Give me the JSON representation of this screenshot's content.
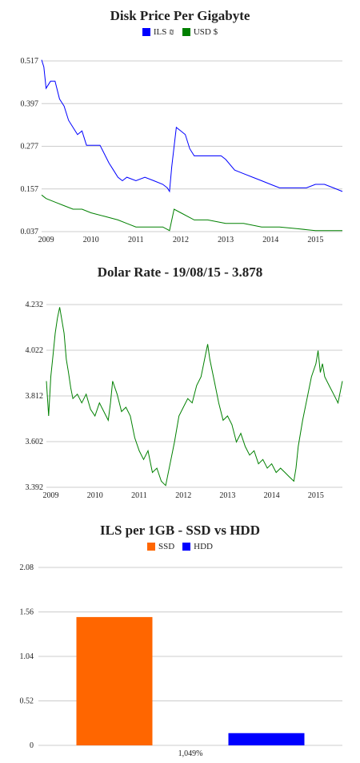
{
  "colors": {
    "ils": "#0000ff",
    "usd": "#008000",
    "ssd": "#ff6600",
    "hdd": "#0000ff",
    "grid": "#cccccc"
  },
  "chart_data": [
    {
      "type": "line",
      "title": "Disk Price Per Gigabyte",
      "legend_position": "top-center",
      "grid": true,
      "yticks": [
        "0.517",
        "0.397",
        "0.277",
        "0.157",
        "0.037"
      ],
      "ylim": [
        0.037,
        0.517
      ],
      "xlim": [
        2008.9,
        2015.6
      ],
      "xticks": [
        "2009",
        "2010",
        "2011",
        "2012",
        "2013",
        "2014",
        "2015"
      ],
      "series": [
        {
          "name": "ILS ₪",
          "color": "#0000ff",
          "x": [
            2008.9,
            2008.95,
            2009.0,
            2009.05,
            2009.1,
            2009.2,
            2009.3,
            2009.4,
            2009.5,
            2009.6,
            2009.7,
            2009.8,
            2009.9,
            2010.0,
            2010.2,
            2010.4,
            2010.5,
            2010.6,
            2010.7,
            2010.8,
            2011.0,
            2011.2,
            2011.4,
            2011.6,
            2011.7,
            2011.75,
            2011.8,
            2011.9,
            2012.0,
            2012.1,
            2012.2,
            2012.3,
            2012.5,
            2012.7,
            2012.9,
            2013.0,
            2013.2,
            2013.4,
            2013.6,
            2013.8,
            2014.0,
            2014.2,
            2014.4,
            2014.6,
            2014.8,
            2015.0,
            2015.2,
            2015.4,
            2015.6
          ],
          "values": [
            0.52,
            0.5,
            0.44,
            0.45,
            0.46,
            0.46,
            0.41,
            0.39,
            0.35,
            0.33,
            0.31,
            0.32,
            0.28,
            0.28,
            0.28,
            0.23,
            0.21,
            0.19,
            0.18,
            0.19,
            0.18,
            0.19,
            0.18,
            0.17,
            0.16,
            0.15,
            0.22,
            0.33,
            0.32,
            0.31,
            0.27,
            0.25,
            0.25,
            0.25,
            0.25,
            0.24,
            0.21,
            0.2,
            0.19,
            0.18,
            0.17,
            0.16,
            0.16,
            0.16,
            0.16,
            0.17,
            0.17,
            0.16,
            0.15
          ]
        },
        {
          "name": "USD $",
          "color": "#008000",
          "x": [
            2008.9,
            2009.0,
            2009.2,
            2009.4,
            2009.6,
            2009.8,
            2010.0,
            2010.3,
            2010.6,
            2010.8,
            2011.0,
            2011.3,
            2011.6,
            2011.75,
            2011.85,
            2012.0,
            2012.3,
            2012.6,
            2013.0,
            2013.4,
            2013.8,
            2014.2,
            2014.6,
            2015.0,
            2015.3,
            2015.6
          ],
          "values": [
            0.14,
            0.13,
            0.12,
            0.11,
            0.1,
            0.1,
            0.09,
            0.08,
            0.07,
            0.06,
            0.05,
            0.05,
            0.05,
            0.04,
            0.1,
            0.09,
            0.07,
            0.07,
            0.06,
            0.06,
            0.05,
            0.05,
            0.045,
            0.04,
            0.04,
            0.04
          ]
        }
      ]
    },
    {
      "type": "line",
      "title": "Dolar Rate - 19/08/15 - 3.878",
      "grid": true,
      "yticks": [
        "4.232",
        "4.022",
        "3.812",
        "3.602",
        "3.392"
      ],
      "ylim": [
        3.392,
        4.232
      ],
      "xlim": [
        2008.9,
        2015.6
      ],
      "xticks": [
        "2009",
        "2010",
        "2011",
        "2012",
        "2013",
        "2014",
        "2015"
      ],
      "series": [
        {
          "name": "",
          "color": "#008000",
          "x": [
            2008.9,
            2008.95,
            2009.0,
            2009.05,
            2009.1,
            2009.15,
            2009.2,
            2009.3,
            2009.35,
            2009.4,
            2009.45,
            2009.5,
            2009.6,
            2009.7,
            2009.8,
            2009.9,
            2010.0,
            2010.1,
            2010.2,
            2010.3,
            2010.35,
            2010.4,
            2010.5,
            2010.6,
            2010.7,
            2010.8,
            2010.9,
            2011.0,
            2011.1,
            2011.2,
            2011.3,
            2011.4,
            2011.5,
            2011.6,
            2011.7,
            2011.8,
            2011.9,
            2012.0,
            2012.1,
            2012.2,
            2012.3,
            2012.4,
            2012.5,
            2012.55,
            2012.6,
            2012.7,
            2012.8,
            2012.9,
            2013.0,
            2013.1,
            2013.2,
            2013.3,
            2013.4,
            2013.5,
            2013.6,
            2013.7,
            2013.8,
            2013.9,
            2014.0,
            2014.1,
            2014.2,
            2014.3,
            2014.4,
            2014.5,
            2014.55,
            2014.6,
            2014.7,
            2014.8,
            2014.9,
            2015.0,
            2015.05,
            2015.1,
            2015.15,
            2015.2,
            2015.3,
            2015.4,
            2015.5,
            2015.6
          ],
          "values": [
            3.88,
            3.72,
            3.9,
            4.0,
            4.1,
            4.17,
            4.22,
            4.1,
            3.98,
            3.92,
            3.85,
            3.8,
            3.82,
            3.78,
            3.82,
            3.75,
            3.72,
            3.78,
            3.74,
            3.7,
            3.78,
            3.88,
            3.82,
            3.74,
            3.76,
            3.72,
            3.62,
            3.56,
            3.52,
            3.56,
            3.46,
            3.48,
            3.42,
            3.4,
            3.5,
            3.6,
            3.72,
            3.76,
            3.8,
            3.78,
            3.86,
            3.9,
            4.0,
            4.05,
            3.98,
            3.88,
            3.78,
            3.7,
            3.72,
            3.68,
            3.6,
            3.64,
            3.58,
            3.54,
            3.56,
            3.5,
            3.52,
            3.48,
            3.5,
            3.46,
            3.48,
            3.46,
            3.44,
            3.42,
            3.48,
            3.58,
            3.7,
            3.8,
            3.9,
            3.96,
            4.02,
            3.92,
            3.96,
            3.9,
            3.86,
            3.82,
            3.78,
            3.88
          ]
        }
      ]
    },
    {
      "type": "bar",
      "title": "ILS per 1GB - SSD vs HDD",
      "legend_position": "top-center",
      "grid": true,
      "yticks": [
        "2.08",
        "1.56",
        "1.04",
        "0.52",
        "0"
      ],
      "ylim": [
        0,
        2.08
      ],
      "categories": [
        "1,049%"
      ],
      "series": [
        {
          "name": "SSD",
          "color": "#ff6600",
          "values": [
            1.5
          ]
        },
        {
          "name": "HDD",
          "color": "#0000ff",
          "values": [
            0.143
          ]
        }
      ]
    }
  ]
}
